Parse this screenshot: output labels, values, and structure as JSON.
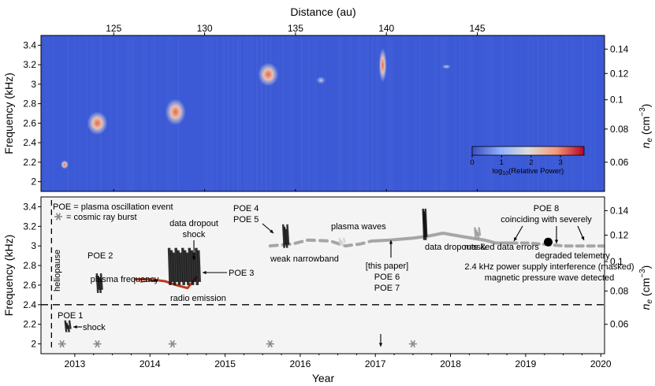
{
  "chart_data": [
    {
      "type": "heatmap",
      "panel": "top",
      "title": "Distance (au)",
      "xlabel": "Distance (au)",
      "ylabel": "Frequency (kHz)",
      "right_ylabel": "n_e (cm^-3)",
      "xlim": [
        121.0,
        152.0
      ],
      "ylim": [
        1.9,
        3.5
      ],
      "x_ticks": [
        125,
        130,
        135,
        140,
        145
      ],
      "y_ticks": [
        2.0,
        2.2,
        2.4,
        2.6,
        2.8,
        3.0,
        3.2,
        3.4
      ],
      "right_ticks": [
        {
          "label": "0.06",
          "freq": 2.2
        },
        {
          "label": "0.08",
          "freq": 2.54
        },
        {
          "label": "0.1",
          "freq": 2.84
        },
        {
          "label": "0.12",
          "freq": 3.11
        },
        {
          "label": "0.14",
          "freq": 3.36
        }
      ],
      "colorbar": {
        "label": "log10(Relative Power)",
        "ticks": [
          0,
          1,
          2,
          3
        ],
        "range": [
          0,
          3.8
        ],
        "cmap": "coolwarm"
      },
      "features": [
        {
          "x": 122.3,
          "f0": 2.13,
          "f1": 2.22,
          "power": 1.8
        },
        {
          "x": 124.1,
          "f0": 2.48,
          "f1": 2.72,
          "power": 3.2
        },
        {
          "x": 128.4,
          "f0": 2.58,
          "f1": 2.85,
          "power": 3.0
        },
        {
          "x": 133.5,
          "f0": 2.98,
          "f1": 3.22,
          "power": 3.2
        },
        {
          "x": 136.4,
          "f0": 3.0,
          "f1": 3.08,
          "power": 1.2
        },
        {
          "x": 139.8,
          "f0": 3.02,
          "f1": 3.37,
          "power": 2.2
        },
        {
          "x": 143.3,
          "f0": 3.16,
          "f1": 3.2,
          "power": 1.1
        }
      ]
    },
    {
      "type": "line",
      "panel": "bottom",
      "xlabel": "Year",
      "ylabel": "Frequency (kHz)",
      "right_ylabel": "n_e (cm^-3)",
      "xlim": [
        2012.55,
        2020.05
      ],
      "ylim": [
        1.9,
        3.5
      ],
      "x_ticks": [
        2013,
        2014,
        2015,
        2016,
        2017,
        2018,
        2019,
        2020
      ],
      "y_ticks": [
        2.0,
        2.2,
        2.4,
        2.6,
        2.8,
        3.0,
        3.2,
        3.4
      ],
      "right_ticks": [
        {
          "label": "0.06",
          "freq": 2.2
        },
        {
          "label": "0.08",
          "freq": 2.54
        },
        {
          "label": "0.1",
          "freq": 2.84
        },
        {
          "label": "0.12",
          "freq": 3.11
        },
        {
          "label": "0.14",
          "freq": 3.36
        }
      ],
      "legend": [
        "POE = plasma oscillation event",
        "= cosmic ray burst"
      ],
      "series": [
        {
          "name": "plasma frequency",
          "color": "#c0391b",
          "x": [
            2013.8,
            2014.0,
            2014.2,
            2014.35,
            2014.5,
            2014.62
          ],
          "y": [
            2.66,
            2.66,
            2.64,
            2.6,
            2.57,
            2.68
          ]
        },
        {
          "name": "weak narrowband plasma waves",
          "color": "#a6a6a6",
          "x": [
            2016.95,
            2017.2,
            2017.5,
            2017.7,
            2017.9,
            2018.2,
            2018.45,
            2018.6,
            2018.8
          ],
          "y": [
            3.05,
            3.06,
            3.08,
            3.1,
            3.13,
            3.09,
            3.06,
            3.03,
            3.03
          ]
        },
        {
          "name": "weak narrowband plasma waves (dashed)",
          "color": "#a6a6a6",
          "x": [
            2015.6,
            2015.9,
            2016.1,
            2016.4,
            2016.6,
            2016.8,
            2016.95
          ],
          "y": [
            3.0,
            3.02,
            3.06,
            3.05,
            3.0,
            3.02,
            3.05
          ]
        },
        {
          "name": "weak narrowband plasma waves (late)",
          "color": "#a6a6a6",
          "x": [
            2018.8,
            2019.0,
            2019.2,
            2019.5,
            2019.8,
            2020.05
          ],
          "y": [
            3.03,
            3.03,
            3.02,
            3.0,
            3.0,
            3.0
          ]
        }
      ],
      "events": [
        {
          "name": "POE 1",
          "x": 2012.9,
          "f0": 2.12,
          "f1": 2.24
        },
        {
          "name": "POE 2",
          "x": 2013.32,
          "f0": 2.52,
          "f1": 2.72
        },
        {
          "name": "POE 3",
          "x": 2014.45,
          "f0": 2.6,
          "f1": 2.98
        },
        {
          "name": "POE 4",
          "x": 2015.8,
          "f0": 2.98,
          "f1": 3.22
        },
        {
          "name": "POE 5",
          "x": 2016.55,
          "f0": 3.0,
          "f1": 3.08
        },
        {
          "name": "POE 6",
          "x": 2017.65,
          "f0": 3.06,
          "f1": 3.38
        },
        {
          "name": "POE 7",
          "x": 2018.35,
          "f0": 3.07,
          "f1": 3.19
        },
        {
          "name": "POE 8",
          "x": 2019.3,
          "f0": 3.03,
          "f1": 3.06
        }
      ],
      "cosmic_ray_bursts_x": [
        2012.83,
        2013.3,
        2014.3,
        2015.6,
        2017.5
      ],
      "cosmic_ray_burst_freq": 2.0,
      "heliopause_x": 2012.69,
      "interference_line_freq": 2.4,
      "poe8_marker": {
        "x": 2019.3,
        "y": 3.04
      },
      "annotations": [
        "heliopause",
        "POE 1",
        "shock",
        "POE 2",
        "plasma frequency",
        "data dropout",
        "shock",
        "POE 3",
        "radio emission",
        "POE 4",
        "POE 5",
        "weak narrowband",
        "plasma waves",
        "[this paper]",
        "POE 6",
        "POE 7",
        "data dropouts &",
        "masked data errors",
        "POE 8",
        "coinciding with severely",
        "degraded telemetry",
        "2.4 kHz power supply interference (masked)",
        "magnetic pressure wave detected"
      ]
    }
  ]
}
